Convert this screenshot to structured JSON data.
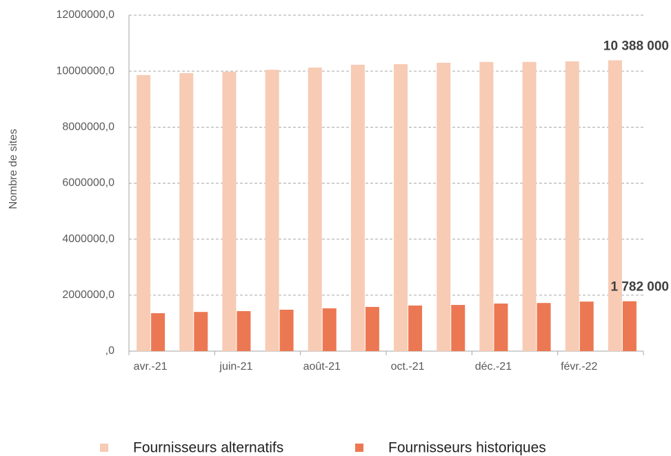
{
  "chart_data": {
    "type": "bar",
    "y_label": "Nombre de sites",
    "categories": [
      "avr.-21",
      null,
      "juin-21",
      null,
      "août-21",
      null,
      "oct.-21",
      null,
      "déc.-21",
      null,
      "févr.-22",
      null
    ],
    "series": [
      {
        "name": "Fournisseurs alternatifs",
        "color": "#f8cbb5",
        "values": [
          9860000,
          9930000,
          9980000,
          10050000,
          10130000,
          10230000,
          10250000,
          10300000,
          10330000,
          10330000,
          10350000,
          10388000
        ],
        "value_labels": [
          null,
          null,
          null,
          null,
          null,
          null,
          null,
          null,
          null,
          null,
          null,
          "10 388 000"
        ]
      },
      {
        "name": "Fournisseurs historiques",
        "color": "#ec7853",
        "values": [
          1355000,
          1400000,
          1430000,
          1480000,
          1530000,
          1580000,
          1630000,
          1650000,
          1700000,
          1720000,
          1770000,
          1782000
        ],
        "value_labels": [
          null,
          null,
          null,
          null,
          null,
          null,
          null,
          null,
          null,
          null,
          null,
          "1 782 000"
        ]
      }
    ],
    "ylim": [
      0,
      12000000
    ],
    "yticks": [
      {
        "value": 0,
        "label": ",0"
      },
      {
        "value": 2000000,
        "label": "2000000,0"
      },
      {
        "value": 4000000,
        "label": "4000000,0"
      },
      {
        "value": 6000000,
        "label": "6000000,0"
      },
      {
        "value": 8000000,
        "label": "8000000,0"
      },
      {
        "value": 10000000,
        "label": "10000000,0"
      },
      {
        "value": 12000000,
        "label": "12000000,0"
      }
    ],
    "grid": true,
    "legend": "bottom"
  }
}
